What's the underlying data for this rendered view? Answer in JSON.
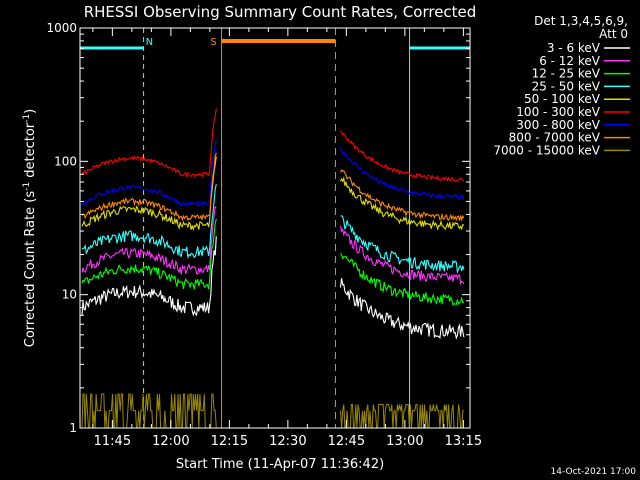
{
  "chart_data": {
    "type": "line",
    "title": "RHESSI Observing Summary Count Rates, Corrected",
    "xlabel": "Start Time (11-Apr-07 11:36:42)",
    "ylabel_main": "Corrected Count Rate (s",
    "ylabel_sup1": "-1",
    "ylabel_mid": " detector",
    "ylabel_sup2": "-1",
    "ylabel_end": ")",
    "yscale": "log",
    "ylim": [
      1,
      1000
    ],
    "xlim_minutes": [
      0,
      100
    ],
    "x_ticks": [
      {
        "label": "11:45",
        "minute": 8.3
      },
      {
        "label": "12:00",
        "minute": 23.3
      },
      {
        "label": "12:15",
        "minute": 38.3
      },
      {
        "label": "12:30",
        "minute": 53.3
      },
      {
        "label": "12:45",
        "minute": 68.3
      },
      {
        "label": "13:00",
        "minute": 83.3
      },
      {
        "label": "13:15",
        "minute": 98.3
      }
    ],
    "y_ticks": [
      {
        "label": "1",
        "value": 1
      },
      {
        "label": "10",
        "value": 10
      },
      {
        "label": "100",
        "value": 100
      },
      {
        "label": "1000",
        "value": 1000
      }
    ],
    "legend_title_1": "Det 1,3,4,5,6,9,",
    "legend_title_2": "Att 0",
    "series": [
      {
        "name": "3 - 6 keV",
        "color": "#ffffff",
        "level1": 8,
        "level2": 5.2
      },
      {
        "name": "6 - 12 keV",
        "color": "#ff33ff",
        "level1": 15.5,
        "level2": 13
      },
      {
        "name": "12 - 25 keV",
        "color": "#00ff00",
        "level1": 12,
        "level2": 9
      },
      {
        "name": "25 - 50 keV",
        "color": "#33ffff",
        "level1": 21,
        "level2": 16
      },
      {
        "name": "50 - 100 keV",
        "color": "#dddd00",
        "level1": 33,
        "level2": 32
      },
      {
        "name": "100 - 300 keV",
        "color": "#ff0000",
        "level1": 80,
        "level2": 72
      },
      {
        "name": "300 - 800 keV",
        "color": "#0000ff",
        "level1": 48,
        "level2": 53
      },
      {
        "name": "800 - 7000 keV",
        "color": "#ff8800",
        "level1": 38,
        "level2": 37
      },
      {
        "name": "7000 - 15000 keV",
        "color": "#998800",
        "level1": 1.8,
        "level2": 1.5
      }
    ],
    "annotations": [
      {
        "text": "N",
        "color": "#33ffff",
        "minute": 17.8
      },
      {
        "text": "S",
        "color": "#ff8800",
        "minute": 34.2
      }
    ],
    "night_markers_minutes": [
      0,
      16.3,
      84.5,
      100
    ],
    "saa_minutes": [
      36.3,
      65.5
    ],
    "footer": "14-Oct-2021 17:00"
  }
}
